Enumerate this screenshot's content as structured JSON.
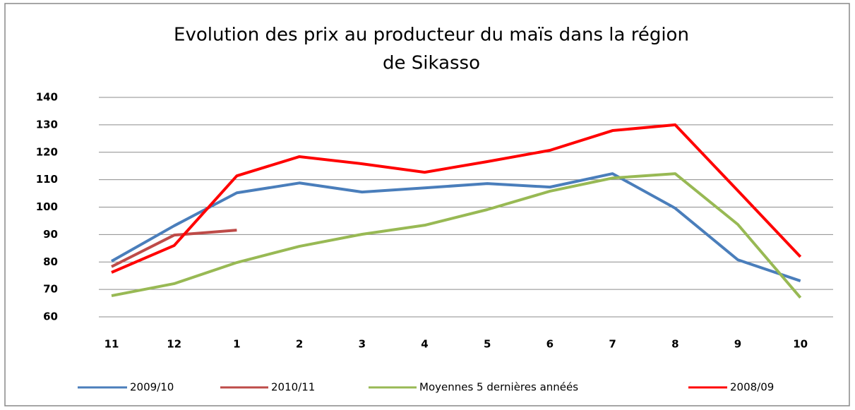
{
  "chart_data": {
    "type": "line",
    "title": [
      "Evolution des prix au producteur du maïs dans la région",
      "de Sikasso"
    ],
    "categories": [
      "11",
      "12",
      "1",
      "2",
      "3",
      "4",
      "5",
      "6",
      "7",
      "8",
      "9",
      "10"
    ],
    "series": [
      {
        "name": "2009/10",
        "color": "#4a7ebb",
        "values": [
          80.3,
          93.2,
          105.2,
          108.8,
          105.5,
          107,
          108.6,
          107.3,
          112.2,
          99.6,
          80.8,
          73.1
        ]
      },
      {
        "name": "2010/11",
        "color": "#be4b48",
        "values": [
          78.3,
          89.8,
          91.6,
          null,
          null,
          null,
          null,
          null,
          null,
          null,
          null,
          null
        ]
      },
      {
        "name": "Moyennes 5 dernières annéés",
        "color": "#98b954",
        "values": [
          67.7,
          72.1,
          79.8,
          85.7,
          90.1,
          93.4,
          99.1,
          105.8,
          110.6,
          112.2,
          93.7,
          67
        ]
      },
      {
        "name": "2008/09",
        "color": "#ff0000",
        "values": [
          76.2,
          86,
          111.4,
          118.4,
          115.8,
          112.7,
          116.6,
          120.7,
          127.9,
          130,
          106,
          81.9
        ]
      }
    ],
    "ylim": [
      60,
      140
    ],
    "yticks": [
      60,
      70,
      80,
      90,
      100,
      110,
      120,
      130,
      140
    ],
    "grid": true,
    "legend": "bottom"
  }
}
